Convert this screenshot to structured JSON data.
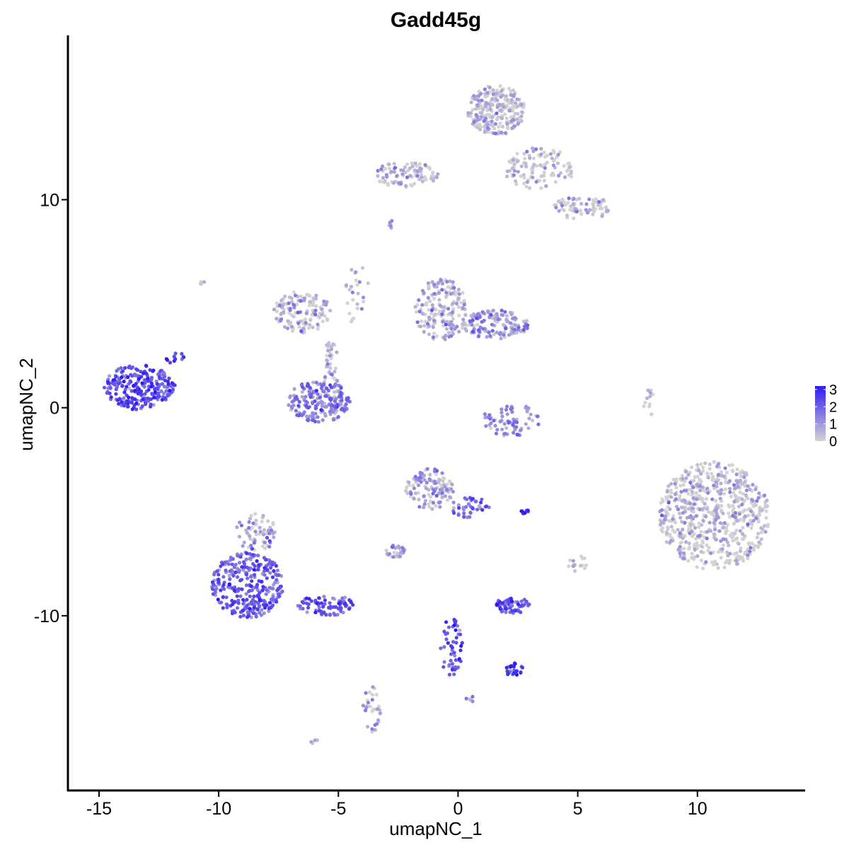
{
  "chart_data": {
    "type": "scatter",
    "title": "Gadd45g",
    "xlabel": "umapNC_1",
    "ylabel": "umapNC_2",
    "xlim": [
      -16.3,
      14.5
    ],
    "ylim": [
      -18.4,
      17.9
    ],
    "x_ticks": [
      -15,
      -10,
      -5,
      0,
      5,
      10
    ],
    "x_tick_labels": [
      "-15",
      "-10",
      "-5",
      "0",
      "5",
      "10"
    ],
    "y_ticks": [
      -10,
      0,
      10
    ],
    "y_tick_labels": [
      "-10",
      "0",
      "10"
    ],
    "grid": false,
    "legend": {
      "position": "right",
      "min": 0,
      "max": 3.2,
      "labels": [
        "3",
        "2",
        "1",
        "0"
      ],
      "color_low": "#d3d3d3",
      "color_high": "#2f1bf2"
    },
    "clusters": [
      {
        "cx": -13.3,
        "cy": 1.0,
        "rx": 1.5,
        "ry": 1.1,
        "n": 240,
        "expr_mean": 2.2
      },
      {
        "cx": -11.8,
        "cy": 2.4,
        "rx": 0.4,
        "ry": 0.3,
        "n": 12,
        "expr_mean": 2.3
      },
      {
        "cx": -8.8,
        "cy": -8.5,
        "rx": 1.5,
        "ry": 1.6,
        "n": 300,
        "expr_mean": 1.9
      },
      {
        "cx": -8.4,
        "cy": -6.0,
        "rx": 0.9,
        "ry": 0.9,
        "n": 70,
        "expr_mean": 0.9
      },
      {
        "cx": -5.5,
        "cy": -9.5,
        "rx": 1.2,
        "ry": 0.5,
        "n": 80,
        "expr_mean": 2.0
      },
      {
        "cx": -5.8,
        "cy": 0.3,
        "rx": 1.3,
        "ry": 1.0,
        "n": 200,
        "expr_mean": 1.4
      },
      {
        "cx": -5.3,
        "cy": 2.0,
        "rx": 0.3,
        "ry": 1.4,
        "n": 40,
        "expr_mean": 0.5
      },
      {
        "cx": -6.5,
        "cy": 4.6,
        "rx": 1.2,
        "ry": 1.0,
        "n": 130,
        "expr_mean": 0.6
      },
      {
        "cx": -4.2,
        "cy": 5.5,
        "rx": 0.5,
        "ry": 1.6,
        "n": 25,
        "expr_mean": 0.3
      },
      {
        "cx": -1.2,
        "cy": -3.9,
        "rx": 1.0,
        "ry": 1.0,
        "n": 120,
        "expr_mean": 0.9
      },
      {
        "cx": 0.5,
        "cy": -4.8,
        "rx": 0.8,
        "ry": 0.5,
        "n": 40,
        "expr_mean": 1.7
      },
      {
        "cx": -2.6,
        "cy": -6.9,
        "rx": 0.4,
        "ry": 0.3,
        "n": 35,
        "expr_mean": 0.8
      },
      {
        "cx": -0.3,
        "cy": -11.5,
        "rx": 0.5,
        "ry": 1.4,
        "n": 55,
        "expr_mean": 2.2
      },
      {
        "cx": 2.3,
        "cy": -12.5,
        "rx": 0.4,
        "ry": 0.4,
        "n": 25,
        "expr_mean": 2.6
      },
      {
        "cx": 2.2,
        "cy": -9.5,
        "rx": 0.8,
        "ry": 0.4,
        "n": 70,
        "expr_mean": 2.0
      },
      {
        "cx": -3.6,
        "cy": -14.5,
        "rx": 0.4,
        "ry": 1.1,
        "n": 30,
        "expr_mean": 0.8
      },
      {
        "cx": -0.7,
        "cy": 4.7,
        "rx": 1.1,
        "ry": 1.5,
        "n": 180,
        "expr_mean": 0.8
      },
      {
        "cx": 1.6,
        "cy": 4.0,
        "rx": 1.4,
        "ry": 0.7,
        "n": 140,
        "expr_mean": 1.0
      },
      {
        "cx": 2.2,
        "cy": -0.6,
        "rx": 1.2,
        "ry": 0.8,
        "n": 70,
        "expr_mean": 1.1
      },
      {
        "cx": 1.6,
        "cy": 14.3,
        "rx": 1.2,
        "ry": 1.2,
        "n": 260,
        "expr_mean": 0.4
      },
      {
        "cx": 3.4,
        "cy": 11.5,
        "rx": 1.5,
        "ry": 1.0,
        "n": 110,
        "expr_mean": 0.3
      },
      {
        "cx": 5.2,
        "cy": 9.6,
        "rx": 1.2,
        "ry": 0.6,
        "n": 80,
        "expr_mean": 0.6
      },
      {
        "cx": -2.2,
        "cy": 11.2,
        "rx": 1.4,
        "ry": 0.6,
        "n": 90,
        "expr_mean": 0.7
      },
      {
        "cx": 10.7,
        "cy": -5.2,
        "rx": 2.3,
        "ry": 2.6,
        "n": 650,
        "expr_mean": 0.3
      },
      {
        "cx": 8.0,
        "cy": 0.2,
        "rx": 0.25,
        "ry": 0.7,
        "n": 12,
        "expr_mean": 0.2
      },
      {
        "cx": 5.0,
        "cy": -7.5,
        "rx": 0.4,
        "ry": 0.4,
        "n": 15,
        "expr_mean": 0.5
      },
      {
        "cx": 2.8,
        "cy": -5.0,
        "rx": 0.2,
        "ry": 0.1,
        "n": 8,
        "expr_mean": 2.7
      },
      {
        "cx": -2.8,
        "cy": 8.8,
        "rx": 0.15,
        "ry": 0.2,
        "n": 6,
        "expr_mean": 1.0
      },
      {
        "cx": -10.7,
        "cy": 6.0,
        "rx": 0.15,
        "ry": 0.15,
        "n": 4,
        "expr_mean": 0.0
      },
      {
        "cx": -6.0,
        "cy": -16.0,
        "rx": 0.2,
        "ry": 0.15,
        "n": 5,
        "expr_mean": 0.5
      },
      {
        "cx": 0.5,
        "cy": -14.0,
        "rx": 0.2,
        "ry": 0.15,
        "n": 5,
        "expr_mean": 1.3
      }
    ]
  }
}
